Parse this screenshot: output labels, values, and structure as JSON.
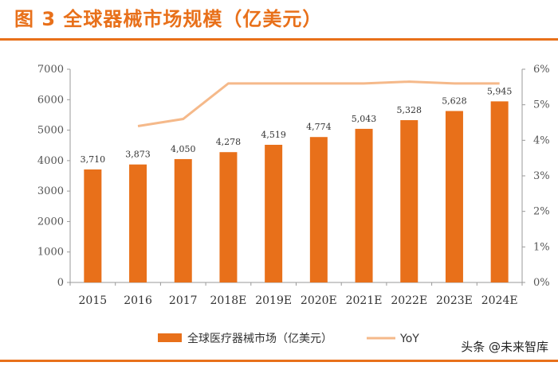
{
  "header": {
    "title": "图 3  全球器械市场规模（亿美元）"
  },
  "watermark": "头条 @未来智库",
  "chart_data": {
    "type": "bar",
    "title": "全球器械市场规模（亿美元）",
    "categories": [
      "2015",
      "2016",
      "2017",
      "2018E",
      "2019E",
      "2020E",
      "2021E",
      "2022E",
      "2023E",
      "2024E"
    ],
    "series": [
      {
        "name": "全球医疗器械市场（亿美元）",
        "type": "bar",
        "axis": "left",
        "color": "#e8701a",
        "values": [
          3710,
          3873,
          4050,
          4278,
          4519,
          4774,
          5043,
          5328,
          5628,
          5945
        ],
        "labels": [
          "3,710",
          "3,873",
          "4,050",
          "4,278",
          "4,519",
          "4,774",
          "5,043",
          "5,328",
          "5,628",
          "5,945"
        ]
      },
      {
        "name": "YoY",
        "type": "line",
        "axis": "right",
        "color": "#f5b98a",
        "values": [
          null,
          4.4,
          4.6,
          5.6,
          5.6,
          5.6,
          5.6,
          5.65,
          5.6,
          5.6
        ]
      }
    ],
    "ylim_left": [
      0,
      7000
    ],
    "yticks_left": [
      "0",
      "1000",
      "2000",
      "3000",
      "4000",
      "5000",
      "6000",
      "7000"
    ],
    "ylim_right": [
      0,
      6
    ],
    "yticks_right": [
      "0%",
      "1%",
      "2%",
      "3%",
      "4%",
      "5%",
      "6%"
    ],
    "legend_position": "bottom"
  }
}
